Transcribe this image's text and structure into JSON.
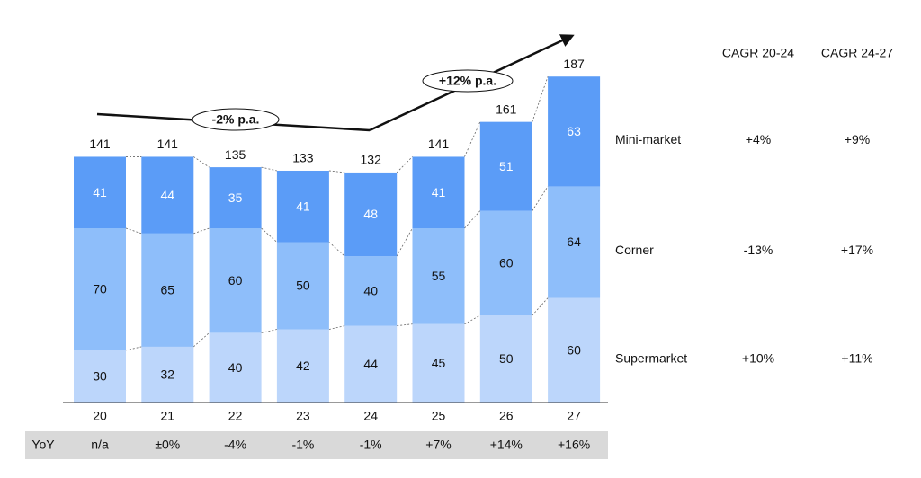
{
  "chart_data": {
    "type": "stacked-bar",
    "categories": [
      "20",
      "21",
      "22",
      "23",
      "24",
      "25",
      "26",
      "27"
    ],
    "series": [
      {
        "name": "Supermarket",
        "color": "#bcd6fb",
        "label_color": "#111111",
        "values": [
          30,
          32,
          40,
          42,
          44,
          45,
          50,
          60
        ]
      },
      {
        "name": "Corner",
        "color": "#8ebefa",
        "label_color": "#111111",
        "values": [
          70,
          65,
          60,
          50,
          40,
          55,
          60,
          64
        ]
      },
      {
        "name": "Mini-market",
        "color": "#5b9cf7",
        "label_color": "#ffffff",
        "values": [
          41,
          44,
          35,
          41,
          48,
          41,
          51,
          63
        ]
      }
    ],
    "totals": [
      141,
      141,
      135,
      133,
      132,
      141,
      161,
      187
    ],
    "yoy": {
      "label": "YoY",
      "values": [
        "n/a",
        "±0%",
        "-4%",
        "-1%",
        "-1%",
        "+7%",
        "+14%",
        "+16%"
      ]
    },
    "cagr": {
      "headers": [
        "CAGR 20-24",
        "CAGR 24-27"
      ],
      "rows": [
        [
          "+10%",
          "+11%"
        ],
        [
          "-13%",
          "+17%"
        ],
        [
          "+4%",
          "+9%"
        ]
      ]
    },
    "annotations": [
      "-2% p.a.",
      "+12% p.a."
    ]
  }
}
